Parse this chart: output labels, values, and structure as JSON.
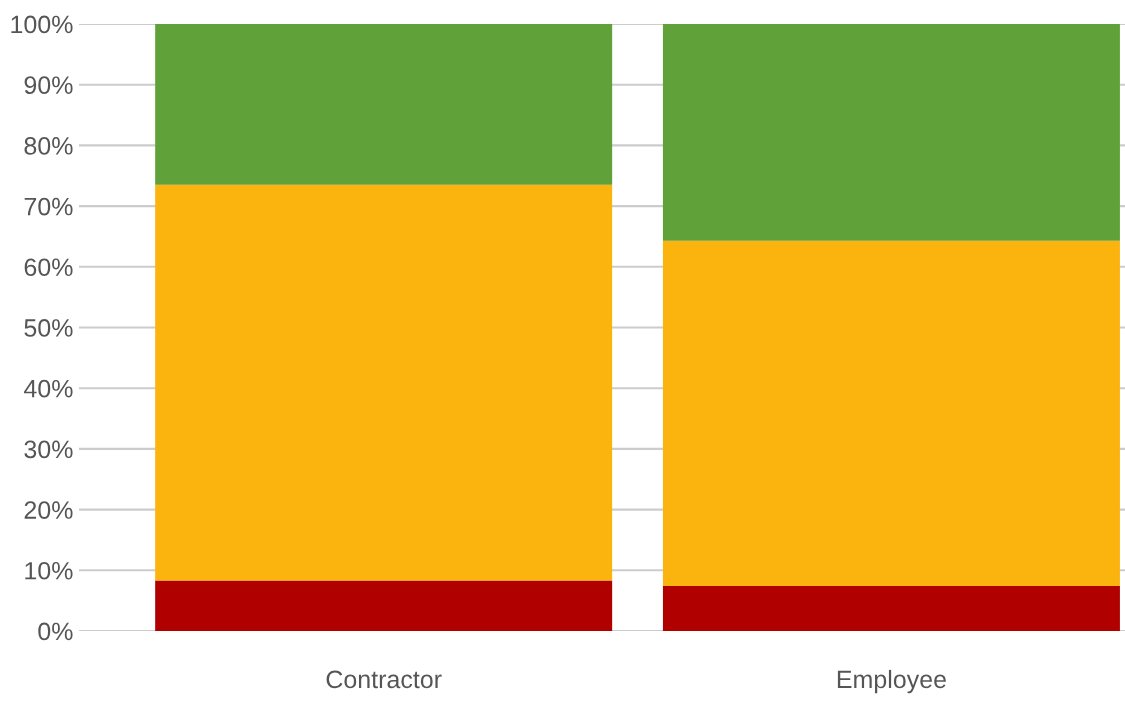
{
  "chart_data": {
    "type": "bar",
    "stacked": true,
    "categories": [
      "Contractor",
      "Employee"
    ],
    "series": [
      {
        "color": "#b00000",
        "values": [
          8.3,
          7.4
        ]
      },
      {
        "color": "#fbb40d",
        "values": [
          65.2,
          56.9
        ]
      },
      {
        "color": "#60a13a",
        "values": [
          26.5,
          35.7
        ]
      }
    ],
    "ylim": [
      0,
      100
    ],
    "yticks": [
      {
        "value": 0,
        "label": "0%"
      },
      {
        "value": 10,
        "label": "10%"
      },
      {
        "value": 20,
        "label": "20%"
      },
      {
        "value": 30,
        "label": "30%"
      },
      {
        "value": 40,
        "label": "40%"
      },
      {
        "value": 50,
        "label": "50%"
      },
      {
        "value": 60,
        "label": "60%"
      },
      {
        "value": 70,
        "label": "70%"
      },
      {
        "value": 80,
        "label": "80%"
      },
      {
        "value": 90,
        "label": "90%"
      },
      {
        "value": 100,
        "label": "100%"
      }
    ],
    "grid": "y",
    "legend": false
  }
}
